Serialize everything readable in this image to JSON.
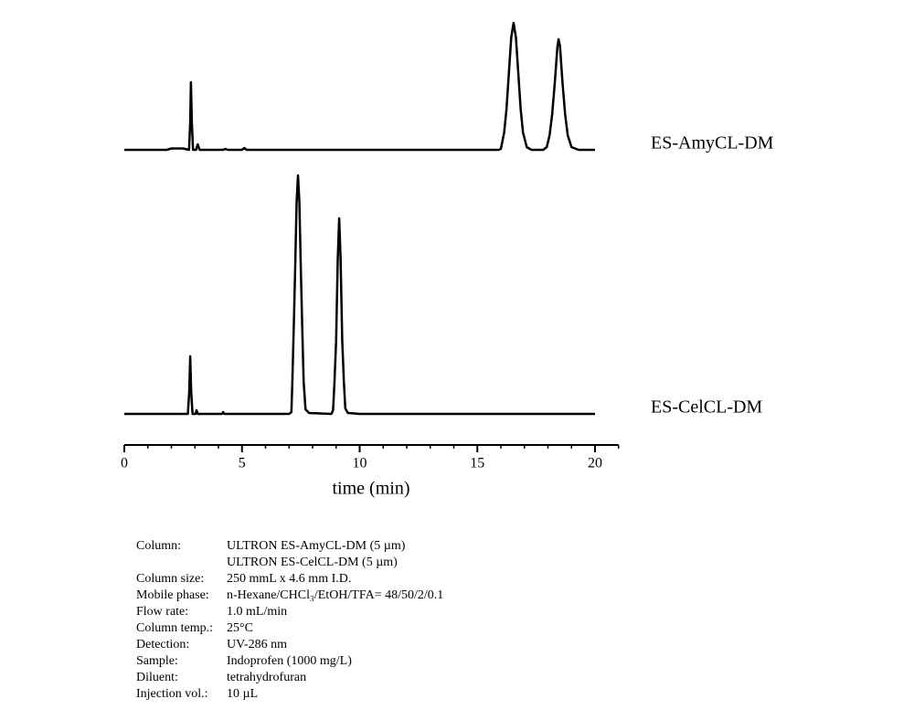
{
  "chart_data": {
    "type": "line",
    "x_label": "time (min)",
    "xlim": [
      0,
      21
    ],
    "xticks": [
      0,
      5,
      10,
      15,
      20
    ],
    "xminorticks": [
      0,
      1,
      2,
      3,
      4,
      5,
      6,
      7,
      8,
      9,
      10,
      11,
      12,
      13,
      14,
      15,
      16,
      17,
      18,
      19,
      20,
      21
    ],
    "ylim": [
      0,
      280
    ],
    "series": [
      {
        "name": "ES-AmyCL-DM",
        "color": "#000000",
        "x": [
          0,
          1.8,
          2.0,
          2.5,
          2.75,
          2.8,
          2.83,
          2.87,
          2.92,
          3.05,
          3.12,
          3.2,
          4.2,
          4.3,
          4.4,
          5.0,
          5.1,
          5.2,
          15.9,
          16.0,
          16.14,
          16.24,
          16.34,
          16.44,
          16.54,
          16.64,
          16.74,
          16.84,
          16.94,
          17.1,
          17.3,
          17.8,
          17.95,
          18.07,
          18.18,
          18.29,
          18.4,
          18.45,
          18.51,
          18.62,
          18.73,
          18.84,
          19.0,
          19.3,
          20
        ],
        "values": [
          0,
          0,
          1.5,
          1.5,
          0,
          30,
          74,
          30,
          0,
          0,
          6,
          0,
          0,
          1,
          0,
          0,
          2,
          0,
          0,
          1,
          19,
          45,
          84,
          123,
          139,
          123,
          84,
          45,
          19,
          3,
          0,
          0,
          3,
          16,
          39,
          73,
          112,
          121,
          114,
          73,
          39,
          16,
          3,
          0,
          0
        ]
      },
      {
        "name": "ES-CelCL-DM",
        "color": "#000000",
        "x": [
          0,
          2.7,
          2.76,
          2.8,
          2.84,
          2.9,
          3.03,
          3.07,
          3.12,
          4.15,
          4.2,
          4.25,
          7.0,
          7.1,
          7.14,
          7.2,
          7.26,
          7.32,
          7.38,
          7.44,
          7.5,
          7.56,
          7.62,
          7.7,
          7.85,
          8.8,
          8.87,
          8.93,
          9.0,
          9.07,
          9.13,
          9.19,
          9.26,
          9.33,
          9.39,
          9.5,
          10,
          20
        ],
        "values": [
          0,
          0,
          25,
          63,
          25,
          0,
          0,
          4,
          0,
          0,
          2,
          0,
          0,
          2,
          35,
          95,
          159,
          231,
          261,
          231,
          159,
          95,
          35,
          5,
          1,
          0,
          4,
          35,
          80,
          170,
          214,
          170,
          80,
          35,
          6,
          1,
          0,
          0
        ]
      }
    ]
  },
  "conditions": [
    {
      "label": "Column:",
      "lines": [
        "ULTRON ES-AmyCL-DM (5 µm)",
        "ULTRON ES-CelCL-DM (5 µm)"
      ]
    },
    {
      "label": "Column size:",
      "lines": [
        "250 mmL x 4.6 mm I.D."
      ]
    },
    {
      "label": "Mobile phase:",
      "lines": [
        "n-Hexane/CHCl₃/EtOH/TFA= 48/50/2/0.1"
      ]
    },
    {
      "label": "Flow rate:",
      "lines": [
        "1.0 mL/min"
      ]
    },
    {
      "label": "Column temp.:",
      "lines": [
        "25°C"
      ]
    },
    {
      "label": "Detection:",
      "lines": [
        "UV-286 nm"
      ]
    },
    {
      "label": "Sample:",
      "lines": [
        "Indoprofen (1000 mg/L)"
      ]
    },
    {
      "label": "Diluent:",
      "lines": [
        "tetrahydrofuran"
      ]
    },
    {
      "label": "Injection vol.:",
      "lines": [
        "10 µL"
      ]
    }
  ]
}
